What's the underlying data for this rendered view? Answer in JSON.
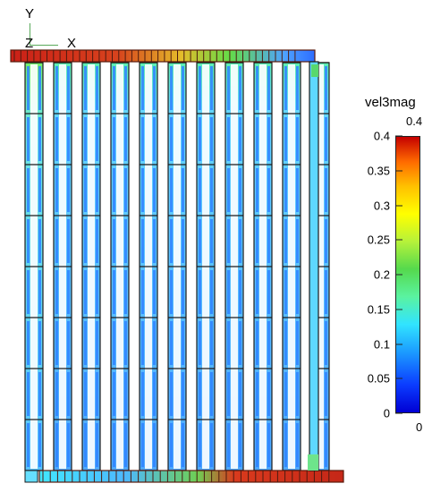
{
  "axes": {
    "y_label": "Y",
    "z_label": "Z",
    "x_label": "X"
  },
  "colorbar": {
    "title": "vel3mag",
    "max_label": "0.4",
    "min_label": "0",
    "ticks": [
      "0.4",
      "0.35",
      "0.3",
      "0.25",
      "0.2",
      "0.15",
      "0.1",
      "0.05",
      "0"
    ],
    "colors": {
      "low": "#0000d4",
      "mid_low": "#1c9cff",
      "mid": "#5af3a0",
      "mid_high": "#ffff00",
      "high": "#c50000"
    }
  },
  "visualization": {
    "panel_count": 11,
    "row_count": 8,
    "header_color": "#d92f1f",
    "base_color": "#5ec8ff",
    "channel_color": "#2f82ff",
    "outline_color": "#1b1b1b",
    "bottom_manifold_color": "#c92518"
  }
}
